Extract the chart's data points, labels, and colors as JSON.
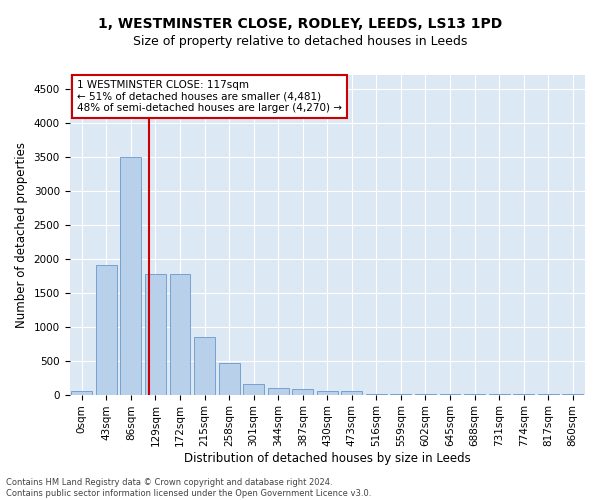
{
  "title": "1, WESTMINSTER CLOSE, RODLEY, LEEDS, LS13 1PD",
  "subtitle": "Size of property relative to detached houses in Leeds",
  "xlabel": "Distribution of detached houses by size in Leeds",
  "ylabel": "Number of detached properties",
  "footer_line1": "Contains HM Land Registry data © Crown copyright and database right 2024.",
  "footer_line2": "Contains public sector information licensed under the Open Government Licence v3.0.",
  "bar_labels": [
    "0sqm",
    "43sqm",
    "86sqm",
    "129sqm",
    "172sqm",
    "215sqm",
    "258sqm",
    "301sqm",
    "344sqm",
    "387sqm",
    "430sqm",
    "473sqm",
    "516sqm",
    "559sqm",
    "602sqm",
    "645sqm",
    "688sqm",
    "731sqm",
    "774sqm",
    "817sqm",
    "860sqm"
  ],
  "bar_values": [
    50,
    1900,
    3500,
    1780,
    1780,
    850,
    460,
    160,
    90,
    75,
    55,
    50,
    5,
    5,
    5,
    5,
    5,
    5,
    5,
    5,
    5
  ],
  "bar_color": "#b8d0ea",
  "bar_edge_color": "#6699cc",
  "ylim": [
    0,
    4700
  ],
  "yticks": [
    0,
    500,
    1000,
    1500,
    2000,
    2500,
    3000,
    3500,
    4000,
    4500
  ],
  "vline_x": 2.73,
  "vline_color": "#cc0000",
  "annotation_text_line1": "1 WESTMINSTER CLOSE: 117sqm",
  "annotation_text_line2": "← 51% of detached houses are smaller (4,481)",
  "annotation_text_line3": "48% of semi-detached houses are larger (4,270) →",
  "annotation_box_color": "#cc0000",
  "bg_color": "#dde8f5",
  "grid_color": "#ffffff",
  "title_fontsize": 10,
  "subtitle_fontsize": 9,
  "axis_label_fontsize": 8.5,
  "tick_fontsize": 7.5,
  "annotation_fontsize": 7.5
}
